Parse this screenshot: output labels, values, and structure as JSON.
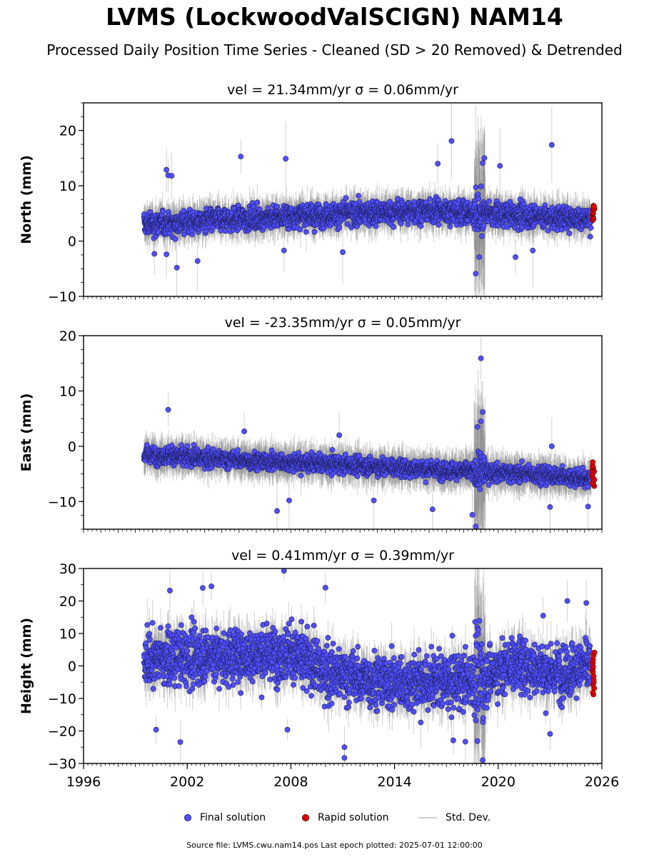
{
  "title": "LVMS (LockwoodValSCIGN) NAM14",
  "subtitle": "Processed Daily Position Time Series - Cleaned (SD > 20 Removed) & Detrended",
  "legend": {
    "final_label": "Final solution",
    "rapid_label": "Rapid solution",
    "std_label": "Std. Dev.",
    "final_color": "#4f4fff",
    "rapid_color": "#e00000",
    "std_color": "#c8c8c8"
  },
  "footer": "Source file: LVMS.cwu.nam14.pos  Last epoch plotted: 2025-07-01 12:00:00",
  "chart_data": [
    {
      "type": "scatter",
      "title": "vel = 21.34mm/yr   σ = 0.06mm/yr",
      "ylabel": "North (mm)",
      "xlim": [
        1996,
        2026
      ],
      "ylim": [
        -10,
        25
      ],
      "yticks": [
        -10,
        0,
        10,
        20
      ],
      "ytick_labels": [
        "−10",
        "0",
        "10",
        "20"
      ],
      "baseline": [
        [
          1999.5,
          3.0
        ],
        [
          2008,
          4.5
        ],
        [
          2016,
          5.5
        ],
        [
          2019,
          5.0
        ],
        [
          2022,
          4.5
        ],
        [
          2025.5,
          4.0
        ]
      ],
      "noise_sd": 1.6,
      "rapid_range": [
        3.5,
        6.5
      ],
      "outliers": [
        [
          2000.1,
          -2.3
        ],
        [
          2000.8,
          -2.4
        ],
        [
          2001.4,
          -4.8
        ],
        [
          2002.6,
          -3.6
        ],
        [
          2000.8,
          12.9
        ],
        [
          2000.9,
          11.9
        ],
        [
          2001.1,
          11.8
        ],
        [
          2005.1,
          15.3
        ],
        [
          2007.7,
          14.9
        ],
        [
          2007.6,
          -1.7
        ],
        [
          2011.0,
          -2.0
        ],
        [
          2016.5,
          14.0
        ],
        [
          2017.3,
          18.1
        ],
        [
          2018.7,
          -5.9
        ],
        [
          2018.9,
          -2.9
        ],
        [
          2019.2,
          15.0
        ],
        [
          2022.0,
          -1.7
        ],
        [
          2023.1,
          17.4
        ],
        [
          2019.1,
          14.1
        ],
        [
          2020.1,
          13.6
        ],
        [
          2021.0,
          -2.9
        ]
      ]
    },
    {
      "type": "scatter",
      "title": "vel = -23.35mm/yr   σ = 0.05mm/yr",
      "ylabel": "East (mm)",
      "xlim": [
        1996,
        2026
      ],
      "ylim": [
        -15,
        20
      ],
      "yticks": [
        -10,
        0,
        10,
        20
      ],
      "ytick_labels": [
        "−10",
        "0",
        "10",
        "20"
      ],
      "baseline": [
        [
          1999.5,
          -1.5
        ],
        [
          2005,
          -2.5
        ],
        [
          2012,
          -3.5
        ],
        [
          2018,
          -4.5
        ],
        [
          2022,
          -5.0
        ],
        [
          2025.5,
          -6.0
        ]
      ],
      "noise_sd": 1.2,
      "rapid_range": [
        -7.0,
        -3.0
      ],
      "outliers": [
        [
          2000.9,
          6.6
        ],
        [
          2007.2,
          -11.7
        ],
        [
          2007.9,
          -9.8
        ],
        [
          2016.2,
          -11.4
        ],
        [
          2018.5,
          -12.4
        ],
        [
          2018.7,
          -14.5
        ],
        [
          2019.0,
          15.9
        ],
        [
          2019.1,
          6.2
        ],
        [
          2018.8,
          3.5
        ],
        [
          2019.0,
          4.5
        ],
        [
          2023.1,
          0.0
        ],
        [
          2023.0,
          -11.0
        ],
        [
          2025.2,
          -10.9
        ],
        [
          2005.3,
          2.7
        ],
        [
          2010.8,
          2.0
        ],
        [
          2012.8,
          -9.8
        ]
      ]
    },
    {
      "type": "scatter",
      "title": "vel = 0.41mm/yr   σ = 0.39mm/yr",
      "ylabel": "Height (mm)",
      "xlim": [
        1996,
        2026
      ],
      "ylim": [
        -30,
        30
      ],
      "yticks": [
        -30,
        -20,
        -10,
        0,
        10,
        20,
        30
      ],
      "ytick_labels": [
        "−30",
        "−20",
        "−10",
        "0",
        "10",
        "20",
        "30"
      ],
      "xticks": [
        1996,
        2002,
        2008,
        2014,
        2020,
        2026
      ],
      "xtick_labels": [
        "1996",
        "2002",
        "2008",
        "2014",
        "2020",
        "2026"
      ],
      "baseline": [
        [
          1999.5,
          2.0
        ],
        [
          2002,
          3.0
        ],
        [
          2005,
          3.0
        ],
        [
          2008,
          4.0
        ],
        [
          2010,
          -2.0
        ],
        [
          2012,
          -4.0
        ],
        [
          2014,
          -5.0
        ],
        [
          2017,
          -5.0
        ],
        [
          2019,
          -4.0
        ],
        [
          2021,
          1.0
        ],
        [
          2023,
          -2.0
        ],
        [
          2025.5,
          0.0
        ]
      ],
      "noise_sd": 6.5,
      "rapid_range": [
        -9.0,
        4.0
      ],
      "outliers": [
        [
          2007.6,
          29.3
        ],
        [
          2003.4,
          24.5
        ],
        [
          2002.9,
          24.0
        ],
        [
          2001.0,
          23.2
        ],
        [
          2010.0,
          24.1
        ],
        [
          2001.6,
          -23.4
        ],
        [
          2007.8,
          -19.6
        ],
        [
          2011.1,
          -28.3
        ],
        [
          2011.1,
          -25.0
        ],
        [
          2019.1,
          -29.0
        ],
        [
          2017.4,
          -22.9
        ],
        [
          2018.1,
          -23.3
        ],
        [
          2024.0,
          20.0
        ],
        [
          2025.1,
          19.4
        ],
        [
          2000.2,
          -19.6
        ],
        [
          2023.0,
          -20.9
        ],
        [
          2022.6,
          15.5
        ]
      ]
    }
  ]
}
